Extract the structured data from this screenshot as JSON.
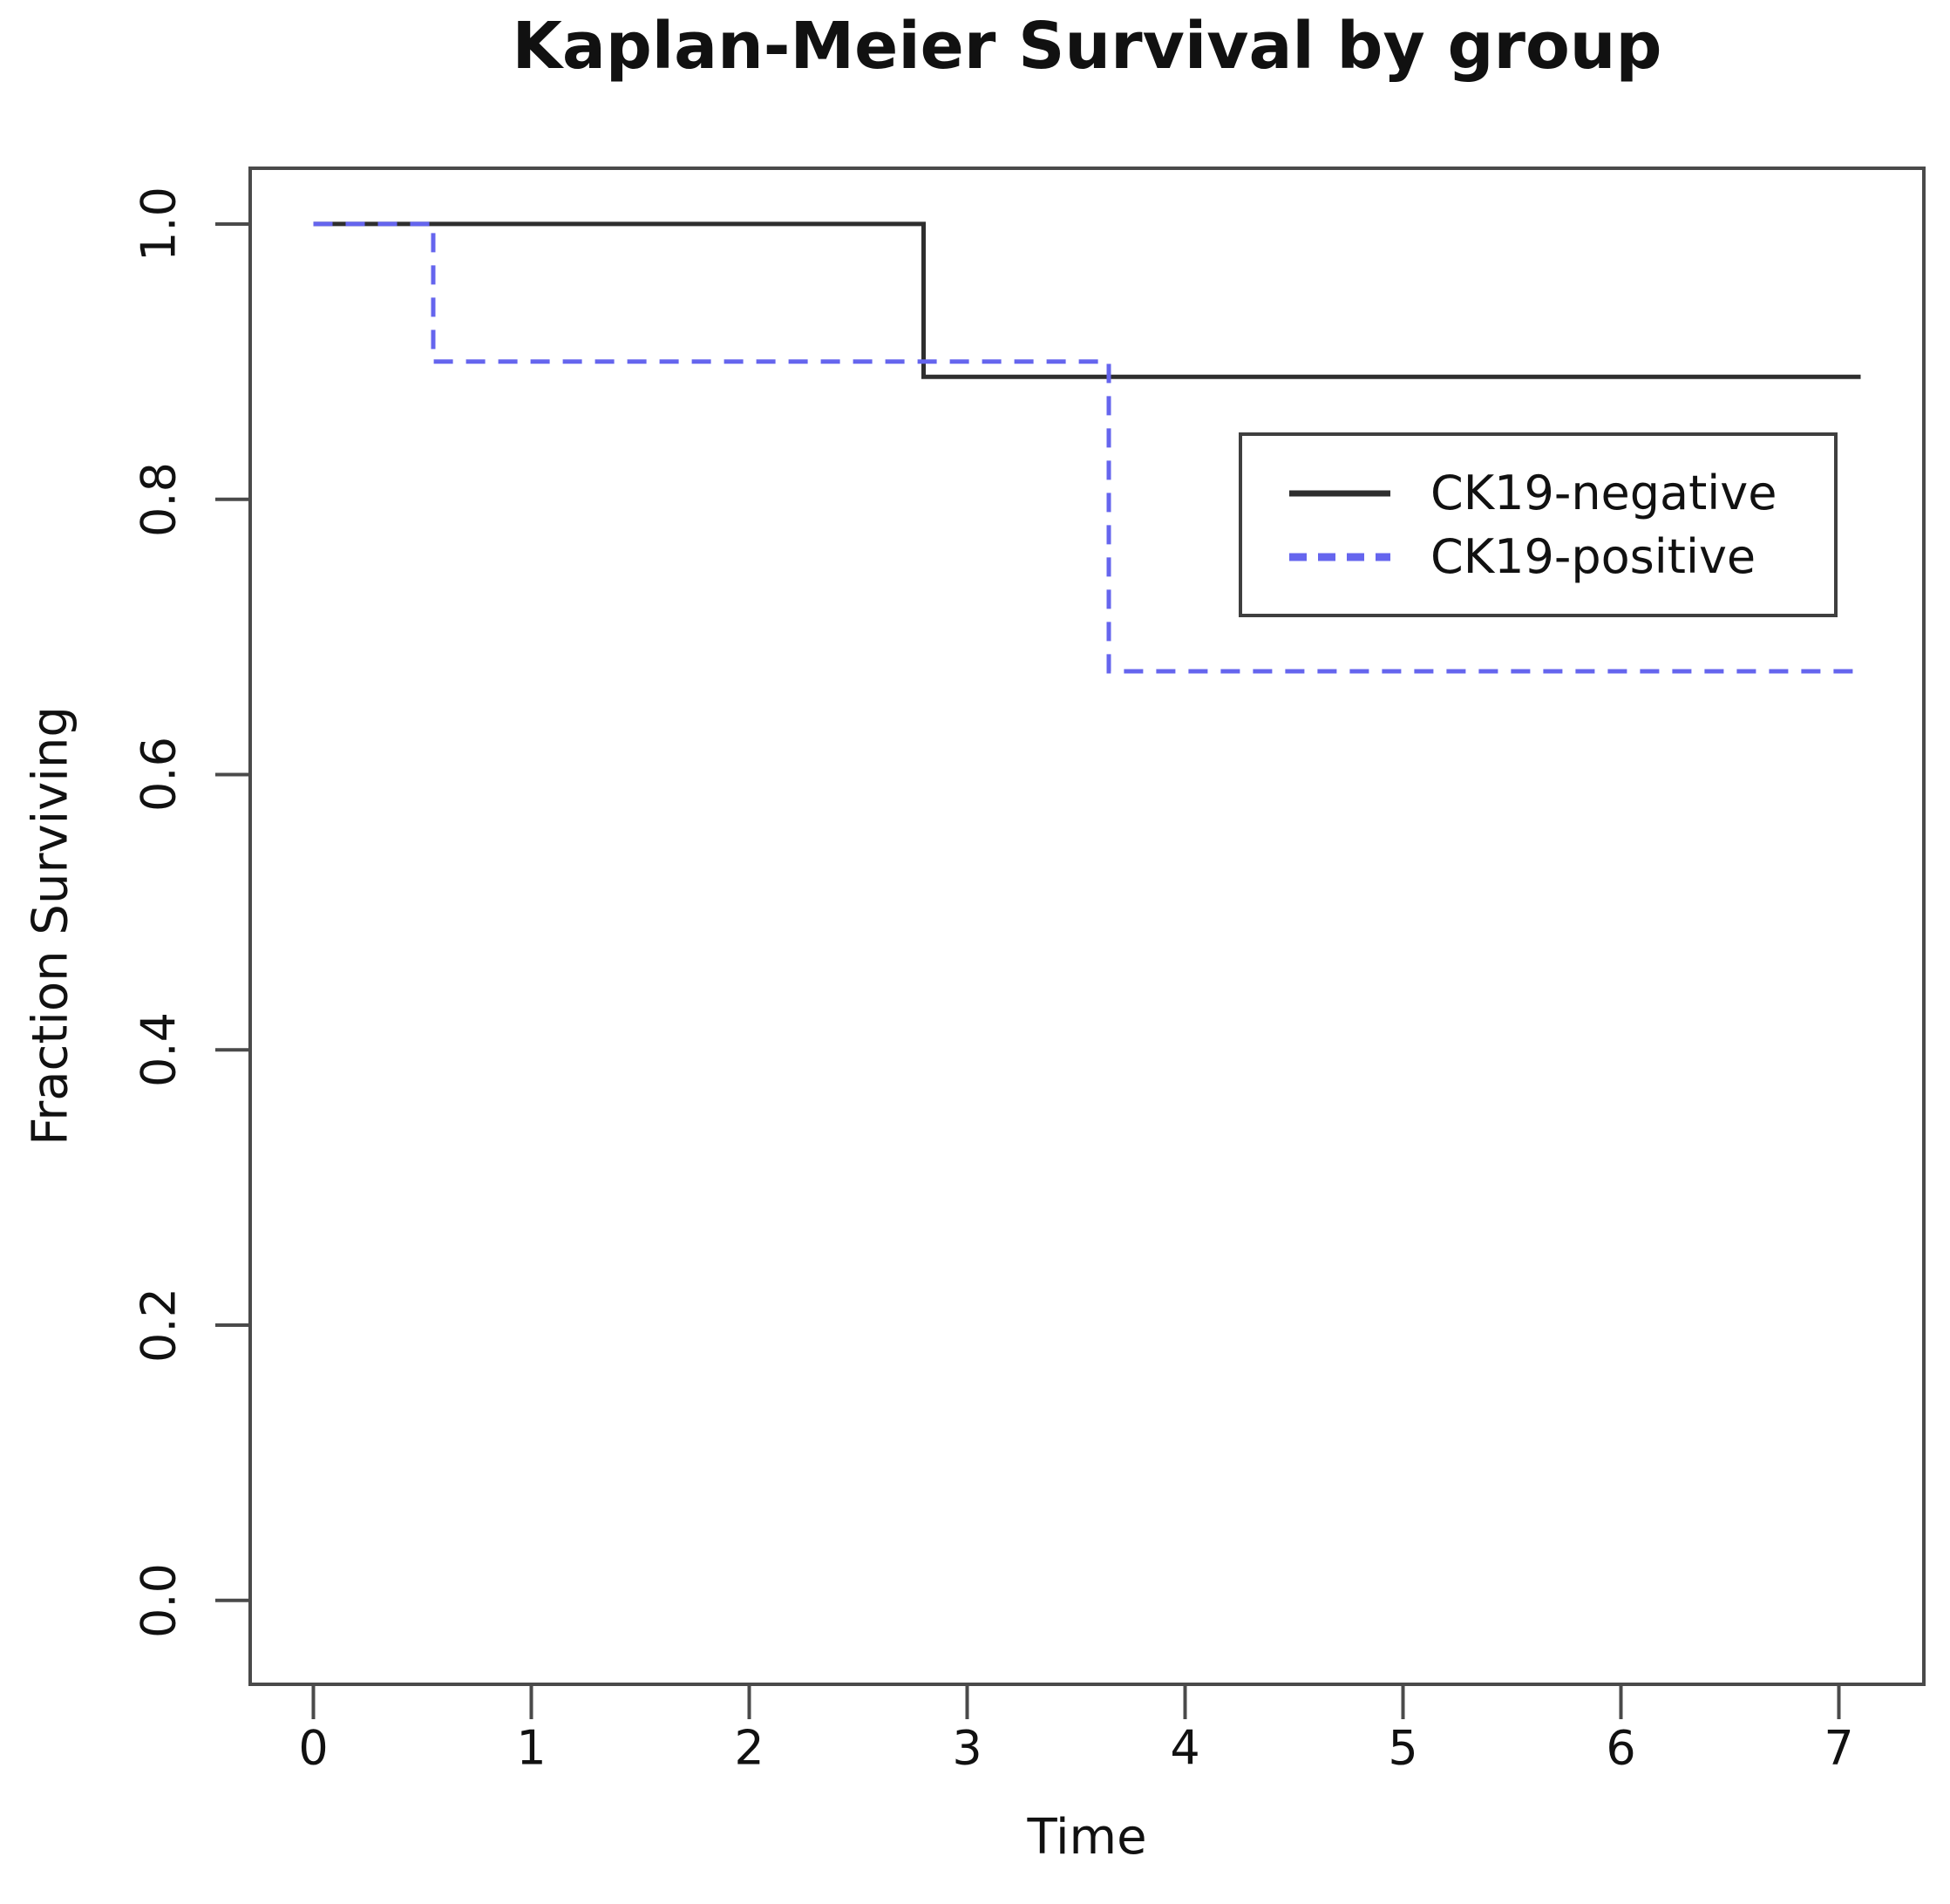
{
  "figure": {
    "title": "Kaplan-Meier Survival by group"
  },
  "x_axis": {
    "label": "Time",
    "tick_labels": [
      "0",
      "1",
      "2",
      "3",
      "4",
      "5",
      "6",
      "7"
    ]
  },
  "y_axis": {
    "label": "Fraction Surviving",
    "tick_labels": [
      "0.0",
      "0.2",
      "0.4",
      "0.6",
      "0.8",
      "1.0"
    ]
  },
  "legend": {
    "items": [
      {
        "label": "CK19-negative",
        "line_style": "solid",
        "color": "#2e2e2e"
      },
      {
        "label": "CK19-positive",
        "line_style": "dashed",
        "color": "#6565ee"
      }
    ]
  },
  "colors": {
    "axis_box": "#4a4a4a",
    "tick": "#4a4a4a",
    "text": "#111111",
    "background": "#ffffff",
    "ck19_negative_line": "#2e2e2e",
    "ck19_positive_line": "#6565ee"
  },
  "chart_data": {
    "type": "line",
    "subtype": "kaplan-meier-step",
    "title": "Kaplan-Meier Survival by group",
    "xlabel": "Time",
    "ylabel": "Fraction Surviving",
    "xlim": [
      -0.29,
      7.39
    ],
    "ylim": [
      -0.061,
      1.0405
    ],
    "x_ticks": [
      0,
      1,
      2,
      3,
      4,
      5,
      6,
      7
    ],
    "y_ticks": [
      0.0,
      0.2,
      0.4,
      0.6,
      0.8,
      1.0
    ],
    "grid": false,
    "legend_position": "upper-right-inside",
    "series": [
      {
        "name": "CK19-negative",
        "line_style": "solid",
        "color": "#2e2e2e",
        "event_times": [
          2.8
        ],
        "points": [
          [
            0.0,
            1.0
          ],
          [
            2.8,
            1.0
          ],
          [
            2.8,
            0.889
          ],
          [
            7.1,
            0.889
          ]
        ]
      },
      {
        "name": "CK19-positive",
        "line_style": "dashed",
        "color": "#6565ee",
        "event_times": [
          0.55,
          3.65
        ],
        "points": [
          [
            0.0,
            1.0
          ],
          [
            0.55,
            1.0
          ],
          [
            0.55,
            0.9
          ],
          [
            3.65,
            0.9
          ],
          [
            3.65,
            0.675
          ],
          [
            7.1,
            0.675
          ]
        ]
      }
    ]
  }
}
